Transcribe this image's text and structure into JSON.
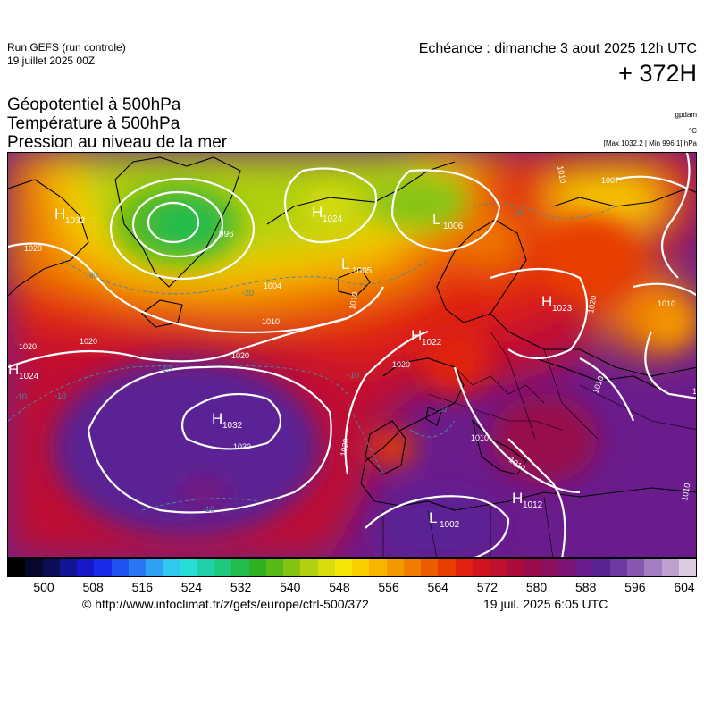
{
  "header": {
    "run_title": "Run GEFS (run controle)",
    "run_date": "19 juillet 2025 00Z",
    "valid_time": "Echéance : dimanche 3 aout 2025 12h UTC",
    "lead_time": "+ 372H"
  },
  "parameters": [
    "Géopotentiel à 500hPa",
    "Température à 500hPa",
    "Pression au niveau de la mer"
  ],
  "units": {
    "geopotential": "gpdam",
    "temperature": "°C",
    "pressure": "[Max 1032.2 | Min 996.1] hPa"
  },
  "pressure_centers": [
    {
      "type": "H",
      "value": "1032"
    },
    {
      "type": "",
      "value": "996"
    },
    {
      "type": "H",
      "value": "1024"
    },
    {
      "type": "L",
      "value": "1006"
    },
    {
      "type": "L",
      "value": "1005"
    },
    {
      "type": "H",
      "value": "1023"
    },
    {
      "type": "H",
      "value": "1022"
    },
    {
      "type": "H",
      "value": "1024"
    },
    {
      "type": "H",
      "value": "1032"
    },
    {
      "type": "L",
      "value": "1002"
    },
    {
      "type": "H",
      "value": "1012"
    }
  ],
  "isobar_labels": [
    "1020",
    "1004",
    "1010",
    "1020",
    "1020",
    "1010",
    "1020",
    "1030",
    "1020",
    "1010",
    "1010",
    "1010",
    "1007",
    "1010",
    "1020",
    "1010",
    "1010",
    "1020",
    "1020"
  ],
  "isotherm_labels": [
    "-20",
    "-20",
    "-20",
    "-10",
    "-10",
    "-10",
    "-10",
    "-10",
    "-10"
  ],
  "colorbar": {
    "ticks": [
      "500",
      "508",
      "516",
      "524",
      "532",
      "540",
      "548",
      "556",
      "564",
      "572",
      "580",
      "588",
      "596",
      "604"
    ],
    "colors": [
      "#000000",
      "#06072a",
      "#0d0d5a",
      "#141496",
      "#1818c8",
      "#1a2ae6",
      "#2050f0",
      "#2a76f4",
      "#30a0f4",
      "#30c8f0",
      "#28dcd8",
      "#20d0a8",
      "#1ec87e",
      "#22bc4c",
      "#30b020",
      "#58b818",
      "#86c414",
      "#b0d010",
      "#d8dc0c",
      "#f4e408",
      "#f8d000",
      "#f8b400",
      "#f49800",
      "#f07c00",
      "#ec5c00",
      "#e83c00",
      "#e02010",
      "#d01420",
      "#c01030",
      "#ac0c3c",
      "#980c4c",
      "#8c1060",
      "#7c1478",
      "#6a1c8c",
      "#5a2494",
      "#6c3aa0",
      "#8858b0",
      "#a47cc0",
      "#c0a0d0",
      "#dccce0"
    ]
  },
  "footer": {
    "credit": "© http://www.infoclimat.fr/z/gefs/europe/ctrl-500/372",
    "generated": "19 juil. 2025  6:05 UTC"
  }
}
